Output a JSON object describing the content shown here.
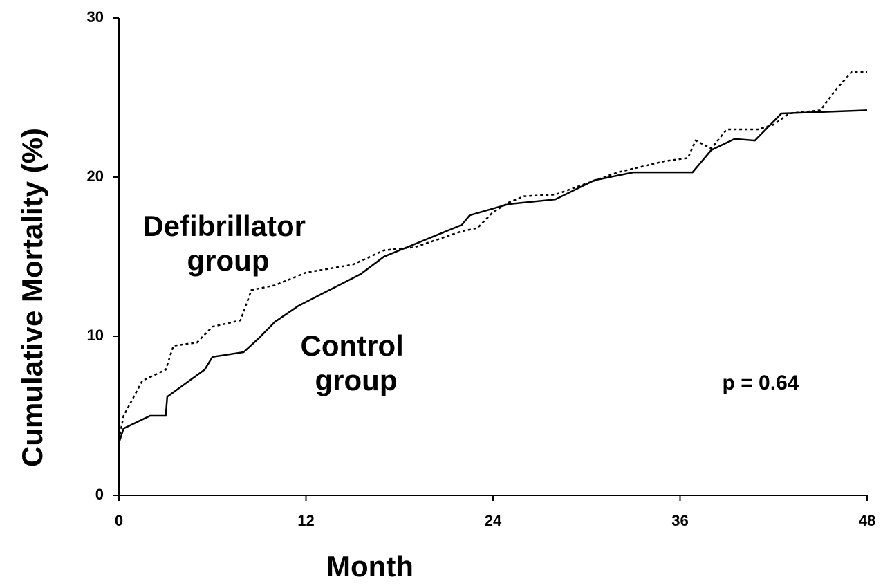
{
  "chart_data": {
    "type": "line",
    "x_label": "Month",
    "y_label": "Cumulative Mortality (%)",
    "annotation": "p = 0.64",
    "xlim": [
      0,
      48
    ],
    "xticks": [
      0,
      12,
      24,
      36,
      48
    ],
    "ylim": [
      0,
      30
    ],
    "yticks": [
      0,
      10,
      20,
      30
    ],
    "series": [
      {
        "name": "Defibrillator group",
        "color": "#000000",
        "line_style": "dotted",
        "x": [
          0,
          0.3,
          1.5,
          3,
          3.5,
          5,
          6,
          7.8,
          8.5,
          10,
          12,
          15,
          17,
          19,
          22,
          23,
          24,
          25,
          26,
          28,
          30,
          32,
          35,
          36.5,
          37,
          38,
          39,
          41,
          42,
          43,
          45,
          46,
          47,
          48
        ],
        "values": [
          3.5,
          5,
          7.2,
          7.9,
          9.4,
          9.6,
          10.6,
          11,
          12.9,
          13.2,
          14,
          14.5,
          15.4,
          15.6,
          16.6,
          16.8,
          17.8,
          18.4,
          18.8,
          18.9,
          19.6,
          20.3,
          21,
          21.2,
          22.3,
          21.8,
          23,
          23,
          23.3,
          24,
          24.2,
          25.5,
          26.6,
          26.6
        ]
      },
      {
        "name": "Control group",
        "color": "#000000",
        "line_style": "solid",
        "x": [
          0,
          0.3,
          2,
          3,
          3.1,
          5.5,
          6,
          8,
          9,
          10,
          11.5,
          13.5,
          15.5,
          17,
          19,
          22,
          22.5,
          25,
          28,
          30.5,
          33,
          36.8,
          38,
          39.5,
          40.8,
          42.5,
          48
        ],
        "values": [
          3.3,
          4.2,
          5,
          5,
          6.2,
          7.9,
          8.7,
          9,
          9.9,
          10.9,
          11.9,
          12.9,
          13.9,
          15,
          15.8,
          17,
          17.6,
          18.3,
          18.6,
          19.8,
          20.3,
          20.3,
          21.7,
          22.4,
          22.3,
          24,
          24.2
        ]
      }
    ]
  }
}
